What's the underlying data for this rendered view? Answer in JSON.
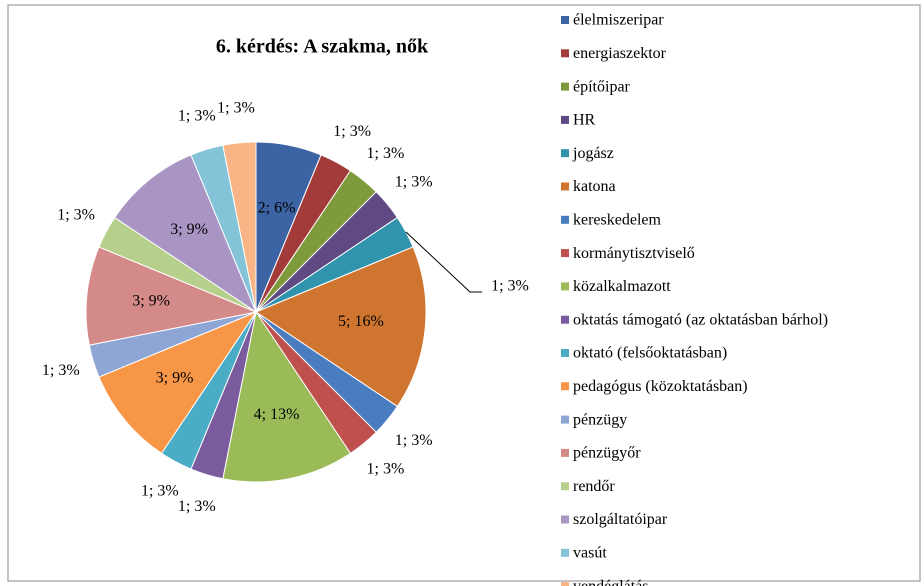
{
  "chart_data": {
    "type": "pie",
    "title": "6. kérdés: A szakma, nők",
    "categories": [
      "élelmiszeripar",
      "energiaszektor",
      "építőipar",
      "HR",
      "jogász",
      "katona",
      "kereskedelem",
      "kormánytisztviselő",
      "közalkalmazott",
      "oktatás támogató (az oktatásban bárhol)",
      "oktató (felsőoktatásban)",
      "pedagógus (közoktatásban)",
      "pénzügy",
      "pénzügyőr",
      "rendőr",
      "szolgáltatóipar",
      "vasút",
      "vendéglátás"
    ],
    "values": [
      2,
      1,
      1,
      1,
      1,
      5,
      1,
      1,
      4,
      1,
      1,
      3,
      1,
      3,
      1,
      3,
      1,
      1
    ],
    "value_labels": [
      "2; 6%",
      "1; 3%",
      "1; 3%",
      "1; 3%",
      "1; 3%",
      "5; 16%",
      "1; 3%",
      "1; 3%",
      "4; 13%",
      "1; 3%",
      "1; 3%",
      "3; 9%",
      "1; 3%",
      "3; 9%",
      "1; 3%",
      "3; 9%",
      "1; 3%",
      "1; 3%"
    ],
    "colors": [
      "#3C64A4",
      "#A33B3A",
      "#7F9A3C",
      "#5F4A84",
      "#3194AD",
      "#D07530",
      "#4A7DC0",
      "#C0504D",
      "#9BBB59",
      "#7A5C9E",
      "#4BACC6",
      "#F79646",
      "#8EA6D6",
      "#D48A88",
      "#B6CF8A",
      "#A895C4",
      "#85C4D8",
      "#F9B586"
    ],
    "legend": "right"
  }
}
